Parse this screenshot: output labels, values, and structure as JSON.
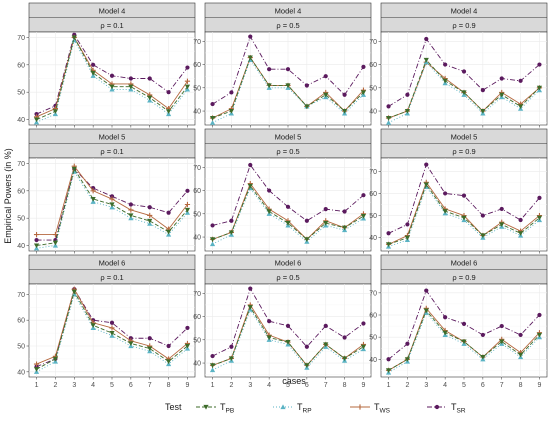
{
  "chart_data": {
    "type": "line",
    "xlabel": "cases",
    "ylabel": "Empirical Powers (in %)",
    "x": [
      1,
      2,
      3,
      4,
      5,
      6,
      7,
      8,
      9
    ],
    "x_ticks": [
      "1",
      "2",
      "3",
      "4",
      "5",
      "6",
      "7",
      "8",
      "9"
    ],
    "legend": {
      "title": "Test",
      "position": "bottom",
      "entries": [
        {
          "key": "PB",
          "base": "T",
          "sub": "PB",
          "color": "#3d6b2a",
          "dash": "4,2",
          "marker": "triangle-down"
        },
        {
          "key": "RP",
          "base": "T",
          "sub": "RP",
          "color": "#5ab3c4",
          "dash": "1,2",
          "marker": "triangle-up"
        },
        {
          "key": "WS",
          "base": "T",
          "sub": "WS",
          "color": "#b5683e",
          "dash": "",
          "marker": "plus"
        },
        {
          "key": "SR",
          "base": "T",
          "sub": "SR",
          "color": "#5b1a5e",
          "dash": "5,2,1,2",
          "marker": "circle"
        }
      ]
    },
    "panels": [
      {
        "model": "Model 4",
        "rho": "ρ = 0.1",
        "ylim": [
          38,
          72
        ],
        "yticks": [
          40,
          50,
          60,
          70
        ],
        "series": {
          "PB": [
            40,
            43,
            70,
            57,
            52,
            52,
            48,
            43,
            52
          ],
          "RP": [
            39,
            42,
            69,
            56,
            51,
            51,
            47,
            42,
            51
          ],
          "WS": [
            41,
            44,
            70,
            58,
            53,
            53,
            49,
            44,
            54
          ],
          "SR": [
            42,
            45,
            71,
            60,
            56,
            55,
            55,
            50,
            59
          ]
        }
      },
      {
        "model": "Model 4",
        "rho": "ρ = 0.5",
        "ylim": [
          34,
          74
        ],
        "yticks": [
          40,
          50,
          60,
          70
        ],
        "series": {
          "PB": [
            37,
            40,
            63,
            51,
            51,
            42,
            47,
            40,
            48
          ],
          "RP": [
            35,
            39,
            62,
            50,
            50,
            42,
            46,
            39,
            47
          ],
          "WS": [
            37,
            41,
            63,
            51,
            51,
            42,
            48,
            40,
            49
          ],
          "SR": [
            43,
            48,
            72,
            58,
            58,
            51,
            55,
            47,
            59
          ]
        }
      },
      {
        "model": "Model 4",
        "rho": "ρ = 0.9",
        "ylim": [
          34,
          74
        ],
        "yticks": [
          40,
          50,
          60,
          70
        ],
        "series": {
          "PB": [
            37,
            40,
            62,
            53,
            48,
            40,
            47,
            42,
            50
          ],
          "RP": [
            35,
            39,
            61,
            52,
            47,
            39,
            46,
            41,
            49
          ],
          "WS": [
            37,
            40,
            61,
            54,
            48,
            40,
            48,
            43,
            50
          ],
          "SR": [
            42,
            47,
            71,
            60,
            57,
            49,
            54,
            53,
            60
          ]
        }
      },
      {
        "model": "Model 5",
        "rho": "ρ = 0.1",
        "ylim": [
          38,
          72
        ],
        "yticks": [
          40,
          50,
          60,
          70
        ],
        "series": {
          "PB": [
            40,
            41,
            68,
            57,
            55,
            51,
            49,
            45,
            53
          ],
          "RP": [
            39,
            40,
            67,
            56,
            54,
            50,
            48,
            44,
            52
          ],
          "WS": [
            44,
            44,
            69,
            60,
            57,
            53,
            51,
            46,
            55
          ],
          "SR": [
            42,
            42,
            68,
            61,
            58,
            55,
            54,
            52,
            60
          ]
        }
      },
      {
        "model": "Model 5",
        "rho": "ρ = 0.5",
        "ylim": [
          34,
          74
        ],
        "yticks": [
          40,
          50,
          60,
          70
        ],
        "series": {
          "PB": [
            39,
            42,
            62,
            51,
            46,
            39,
            46,
            44,
            49
          ],
          "RP": [
            37,
            41,
            61,
            50,
            45,
            38,
            45,
            43,
            48
          ],
          "WS": [
            39,
            42,
            63,
            52,
            47,
            39,
            47,
            44,
            50
          ],
          "SR": [
            45,
            47,
            71,
            60,
            53,
            47,
            52,
            51,
            58
          ]
        }
      },
      {
        "model": "Model 5",
        "rho": "ρ = 0.9",
        "ylim": [
          34,
          76
        ],
        "yticks": [
          40,
          50,
          60,
          70
        ],
        "series": {
          "PB": [
            37,
            40,
            64,
            52,
            49,
            41,
            46,
            42,
            49
          ],
          "RP": [
            36,
            39,
            63,
            51,
            48,
            40,
            45,
            41,
            48
          ],
          "WS": [
            37,
            41,
            65,
            53,
            50,
            41,
            47,
            43,
            50
          ],
          "SR": [
            42,
            46,
            73,
            60,
            59,
            50,
            53,
            48,
            58
          ]
        }
      },
      {
        "model": "Model 6",
        "rho": "ρ = 0.1",
        "ylim": [
          38,
          74
        ],
        "yticks": [
          40,
          50,
          60,
          70
        ],
        "series": {
          "PB": [
            41,
            45,
            71,
            58,
            55,
            51,
            49,
            44,
            50
          ],
          "RP": [
            40,
            44,
            70,
            57,
            54,
            50,
            48,
            43,
            49
          ],
          "WS": [
            43,
            46,
            72,
            59,
            57,
            52,
            50,
            45,
            51
          ],
          "SR": [
            42,
            45,
            72,
            60,
            59,
            53,
            53,
            50,
            57
          ]
        }
      },
      {
        "model": "Model 6",
        "rho": "ρ = 0.5",
        "ylim": [
          34,
          74
        ],
        "yticks": [
          40,
          50,
          60,
          70
        ],
        "series": {
          "PB": [
            39,
            42,
            64,
            51,
            49,
            39,
            48,
            42,
            47
          ],
          "RP": [
            37,
            41,
            63,
            50,
            48,
            38,
            47,
            41,
            46
          ],
          "WS": [
            39,
            42,
            65,
            52,
            49,
            39,
            48,
            42,
            48
          ],
          "SR": [
            43,
            47,
            72,
            58,
            56,
            47,
            56,
            51,
            57
          ]
        }
      },
      {
        "model": "Model 6",
        "rho": "ρ = 0.9",
        "ylim": [
          32,
          74
        ],
        "yticks": [
          40,
          50,
          60,
          70
        ],
        "series": {
          "PB": [
            35,
            40,
            62,
            52,
            48,
            41,
            48,
            42,
            51
          ],
          "RP": [
            34,
            39,
            61,
            51,
            47,
            40,
            47,
            41,
            50
          ],
          "WS": [
            35,
            40,
            63,
            53,
            48,
            41,
            49,
            43,
            52
          ],
          "SR": [
            40,
            47,
            71,
            59,
            56,
            51,
            55,
            51,
            60
          ]
        }
      }
    ]
  }
}
